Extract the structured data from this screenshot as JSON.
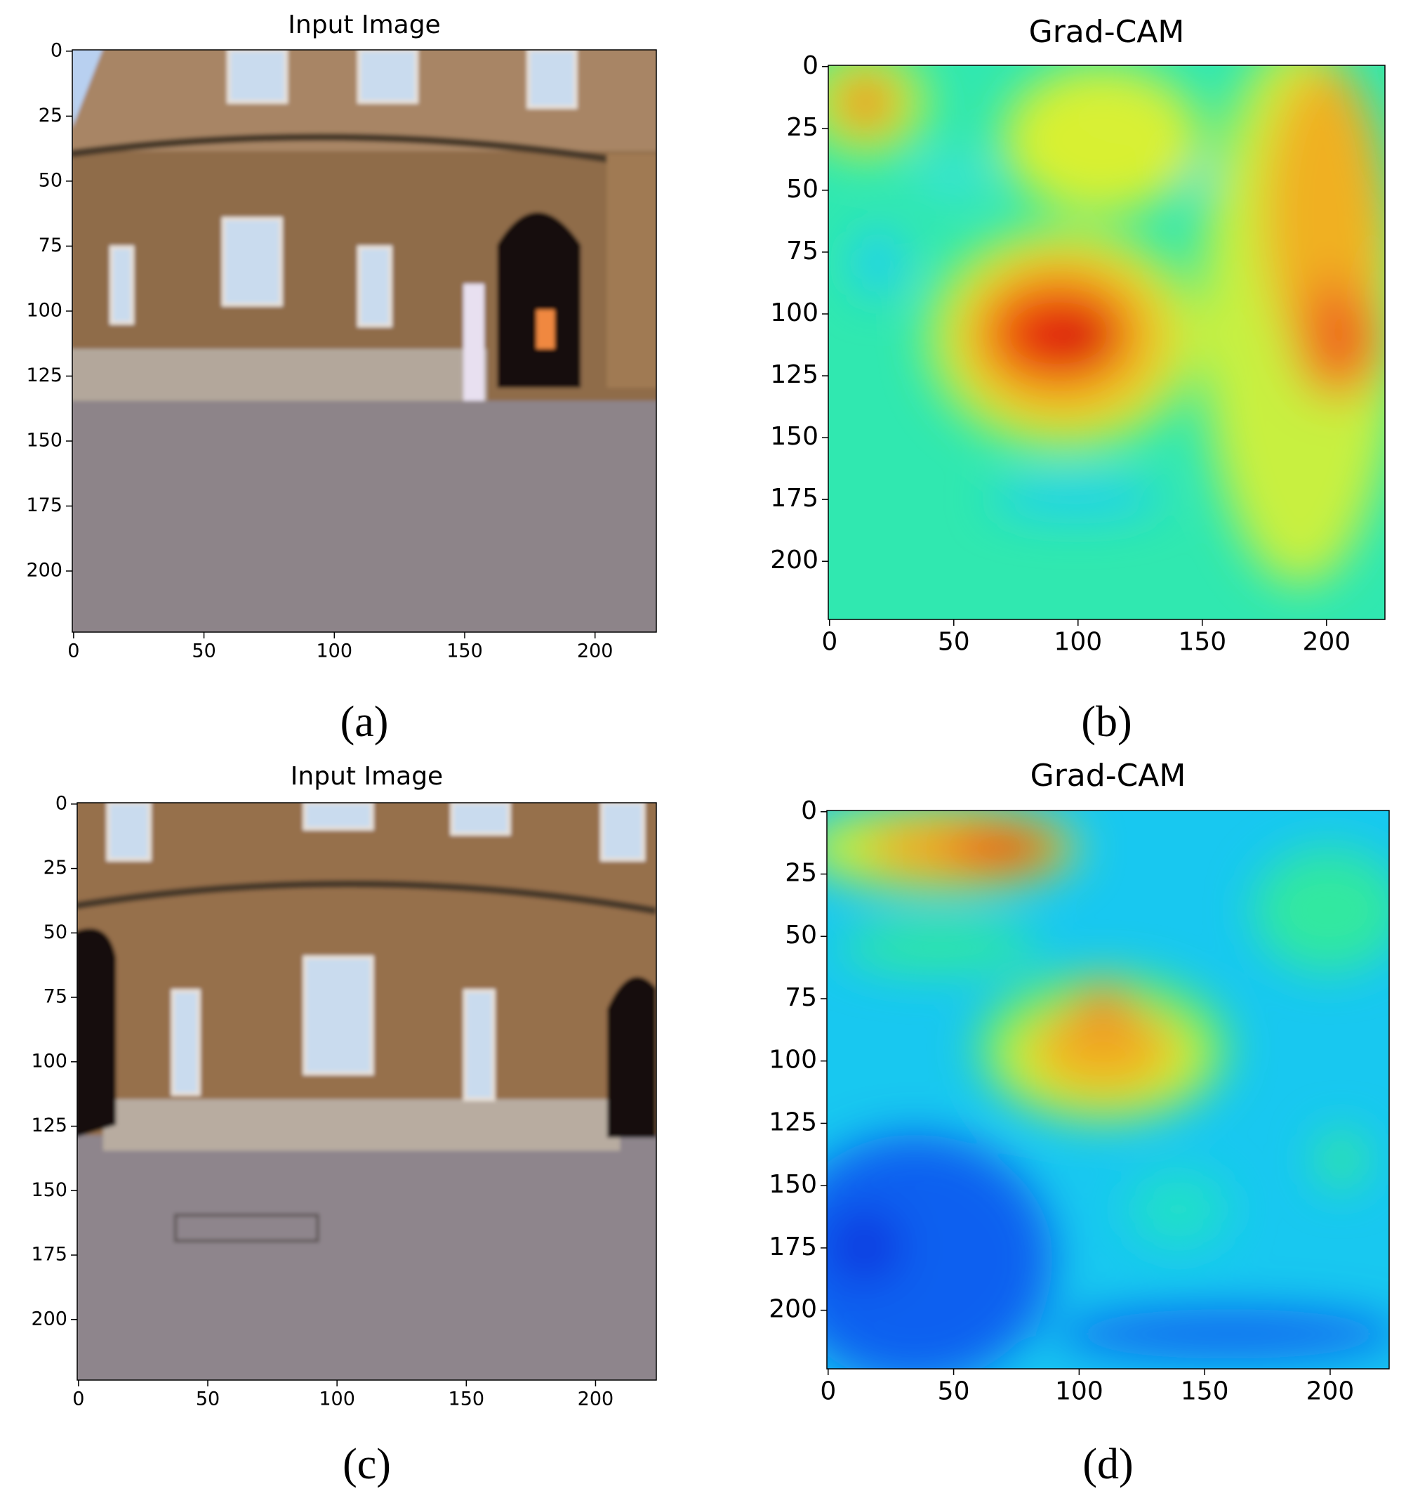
{
  "chart_data": [
    {
      "type": "image",
      "title": "Input Image",
      "caption": "(a)",
      "xlim": [
        -0.5,
        223.5
      ],
      "ylim": [
        223.5,
        -0.5
      ],
      "xticks": [
        0,
        50,
        100,
        150,
        200
      ],
      "yticks": [
        0,
        25,
        50,
        75,
        100,
        125,
        150,
        175,
        200
      ]
    },
    {
      "type": "heatmap",
      "title": "Grad-CAM",
      "caption": "(b)",
      "xlim": [
        -0.5,
        223.5
      ],
      "ylim": [
        223.5,
        -0.5
      ],
      "xticks": [
        0,
        50,
        100,
        150,
        200
      ],
      "yticks": [
        0,
        25,
        50,
        75,
        100,
        125,
        150,
        175,
        200
      ]
    },
    {
      "type": "image",
      "title": "Input Image",
      "caption": "(c)",
      "xlim": [
        -0.5,
        223.5
      ],
      "ylim": [
        223.5,
        -0.5
      ],
      "xticks": [
        0,
        50,
        100,
        150,
        200
      ],
      "yticks": [
        0,
        25,
        50,
        75,
        100,
        125,
        150,
        175,
        200
      ]
    },
    {
      "type": "heatmap",
      "title": "Grad-CAM",
      "caption": "(d)",
      "xlim": [
        -0.5,
        223.5
      ],
      "ylim": [
        223.5,
        -0.5
      ],
      "xticks": [
        0,
        50,
        100,
        150,
        200
      ],
      "yticks": [
        0,
        25,
        50,
        75,
        100,
        125,
        150,
        175,
        200
      ]
    }
  ]
}
